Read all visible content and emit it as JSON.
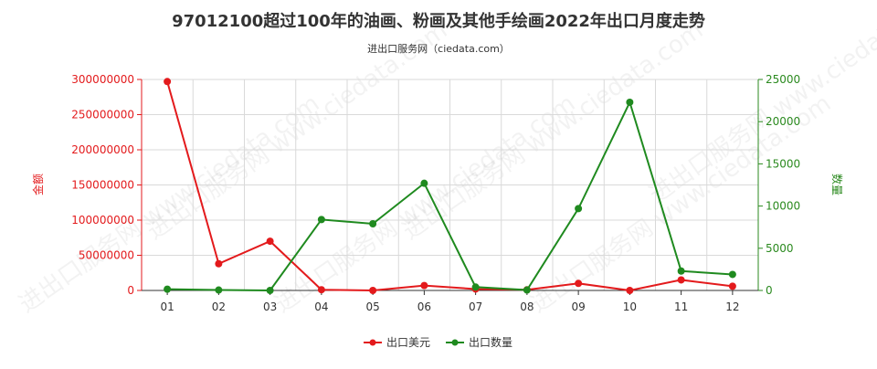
{
  "chart_data": {
    "type": "line",
    "title": "97012100超过100年的油画、粉画及其他手绘画2022年出口月度走势",
    "subtitle": "进出口服务网（ciedata.com）",
    "categories": [
      "01",
      "02",
      "03",
      "04",
      "05",
      "06",
      "07",
      "08",
      "09",
      "10",
      "11",
      "12"
    ],
    "y_left": {
      "label": "金额",
      "ticks": [
        "0",
        "50000000",
        "100000000",
        "150000000",
        "200000000",
        "250000000",
        "300000000"
      ],
      "ylim": [
        0,
        300000000
      ],
      "color": "#e31a1c"
    },
    "y_right": {
      "label": "数量",
      "ticks": [
        "0",
        "5000",
        "10000",
        "15000",
        "20000",
        "25000"
      ],
      "ylim": [
        0,
        25000
      ],
      "color": "#2b8a1f"
    },
    "series": [
      {
        "name": "出口美元",
        "axis": "left",
        "color": "#e31a1c",
        "values": [
          297000000,
          38000000,
          70000000,
          1000000,
          0,
          7000000,
          2000000,
          1000000,
          10000000,
          0,
          15000000,
          6000000
        ]
      },
      {
        "name": "出口数量",
        "axis": "right",
        "color": "#1f8a1f",
        "values": [
          150,
          50,
          0,
          8400,
          7900,
          12700,
          400,
          50,
          9700,
          22300,
          2300,
          1900
        ]
      }
    ],
    "grid": true,
    "legend_position": "bottom-center"
  },
  "watermark": "进出口服务网 www.ciedata.com"
}
